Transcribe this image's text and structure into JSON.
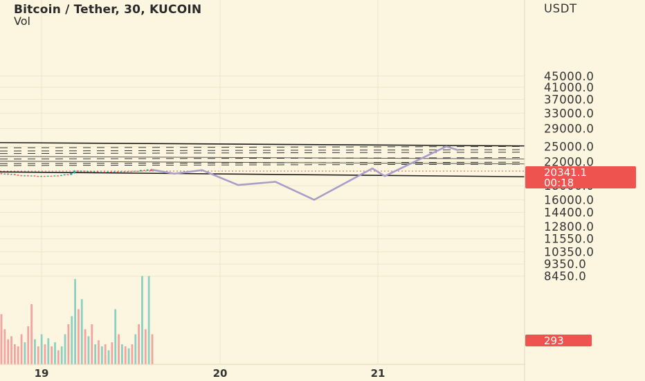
{
  "header": {
    "title": "Bitcoin / Tether, 30, KUCOIN",
    "indicator": "Vol"
  },
  "price_axis": {
    "currency": "USDT",
    "ticks": [
      "45000.0",
      "41000.0",
      "37000.0",
      "33000.0",
      "29000.0",
      "25000.0",
      "22000.0",
      "18000.0",
      "16000.0",
      "14400.0",
      "12800.0",
      "11550.0",
      "10350.0",
      "9350.0",
      "8450.0"
    ]
  },
  "time_axis": {
    "ticks": [
      "19",
      "20",
      "21"
    ]
  },
  "last_price": {
    "value": "20341.1",
    "countdown": "00:18",
    "color": "#ef5350"
  },
  "volume_label": {
    "value": "293",
    "color": "#ef5350"
  },
  "colors": {
    "background": "#fcf6e0",
    "up": "#26a69a",
    "down": "#ef5350",
    "projection": "#a99dc9",
    "channel": "#1a1a1a"
  },
  "chart_data": {
    "type": "candlestick",
    "title": "Bitcoin / Tether, 30, KUCOIN",
    "scale": "log",
    "ylim": [
      8000,
      48000
    ],
    "x_ticks": [
      "19",
      "20",
      "21"
    ],
    "candles_summary": {
      "low_approx": 18900,
      "high_approx": 20600,
      "last": 20341.1
    },
    "projection_path": [
      19900,
      20500,
      18100,
      18600,
      16000,
      20800,
      19500,
      25000,
      24200
    ],
    "channel_upper": [
      25800,
      25100
    ],
    "channel_lower": [
      20200,
      19400
    ],
    "inner_lines": [
      [
        23000,
        22500
      ],
      [
        22100,
        21600
      ]
    ],
    "dashed_levels": [
      24700,
      24050,
      23550,
      22500,
      21650,
      21300
    ],
    "volume": {
      "last": 293,
      "bars": [
        {
          "v": 50,
          "up": false
        },
        {
          "v": 35,
          "up": false
        },
        {
          "v": 25,
          "up": false
        },
        {
          "v": 28,
          "up": false
        },
        {
          "v": 20,
          "up": false
        },
        {
          "v": 18,
          "up": false
        },
        {
          "v": 30,
          "up": false
        },
        {
          "v": 22,
          "up": true
        },
        {
          "v": 38,
          "up": false
        },
        {
          "v": 60,
          "up": false
        },
        {
          "v": 25,
          "up": true
        },
        {
          "v": 18,
          "up": false
        },
        {
          "v": 30,
          "up": true
        },
        {
          "v": 20,
          "up": false
        },
        {
          "v": 26,
          "up": true
        },
        {
          "v": 18,
          "up": false
        },
        {
          "v": 22,
          "up": true
        },
        {
          "v": 14,
          "up": false
        },
        {
          "v": 18,
          "up": true
        },
        {
          "v": 30,
          "up": true
        },
        {
          "v": 40,
          "up": false
        },
        {
          "v": 48,
          "up": true
        },
        {
          "v": 85,
          "up": true
        },
        {
          "v": 55,
          "up": false
        },
        {
          "v": 65,
          "up": true
        },
        {
          "v": 35,
          "up": false
        },
        {
          "v": 28,
          "up": true
        },
        {
          "v": 40,
          "up": false
        },
        {
          "v": 20,
          "up": true
        },
        {
          "v": 24,
          "up": false
        },
        {
          "v": 18,
          "up": true
        },
        {
          "v": 20,
          "up": false
        },
        {
          "v": 14,
          "up": true
        },
        {
          "v": 22,
          "up": false
        },
        {
          "v": 55,
          "up": true
        },
        {
          "v": 30,
          "up": false
        },
        {
          "v": 20,
          "up": true
        },
        {
          "v": 18,
          "up": false
        },
        {
          "v": 16,
          "up": true
        },
        {
          "v": 20,
          "up": false
        },
        {
          "v": 30,
          "up": true
        },
        {
          "v": 40,
          "up": false
        },
        {
          "v": 88,
          "up": true
        },
        {
          "v": 35,
          "up": false
        },
        {
          "v": 88,
          "up": true
        },
        {
          "v": 30,
          "up": false
        }
      ]
    },
    "candles": [
      {
        "o": 19950,
        "c": 19850,
        "h": 20050,
        "l": 19780
      },
      {
        "o": 19850,
        "c": 19900,
        "h": 19980,
        "l": 19760
      },
      {
        "o": 19900,
        "c": 19780,
        "h": 19960,
        "l": 19700
      },
      {
        "o": 19780,
        "c": 19820,
        "h": 19900,
        "l": 19720
      },
      {
        "o": 19820,
        "c": 19700,
        "h": 19880,
        "l": 19640
      },
      {
        "o": 19700,
        "c": 19620,
        "h": 19760,
        "l": 19560
      },
      {
        "o": 19620,
        "c": 19540,
        "h": 19680,
        "l": 19480
      },
      {
        "o": 19540,
        "c": 19600,
        "h": 19660,
        "l": 19480
      },
      {
        "o": 19600,
        "c": 19520,
        "h": 19660,
        "l": 19460
      },
      {
        "o": 19520,
        "c": 19580,
        "h": 19640,
        "l": 19460
      },
      {
        "o": 19580,
        "c": 19500,
        "h": 19640,
        "l": 19440
      },
      {
        "o": 19500,
        "c": 19420,
        "h": 19560,
        "l": 19360
      },
      {
        "o": 19420,
        "c": 19500,
        "h": 19560,
        "l": 19360
      },
      {
        "o": 19500,
        "c": 19460,
        "h": 19560,
        "l": 19400
      },
      {
        "o": 19460,
        "c": 19540,
        "h": 19600,
        "l": 19400
      },
      {
        "o": 19540,
        "c": 19500,
        "h": 19600,
        "l": 19440
      },
      {
        "o": 19500,
        "c": 19580,
        "h": 19640,
        "l": 19460
      },
      {
        "o": 19580,
        "c": 19560,
        "h": 19640,
        "l": 19500
      },
      {
        "o": 19560,
        "c": 19660,
        "h": 19720,
        "l": 19500
      },
      {
        "o": 19660,
        "c": 19780,
        "h": 19840,
        "l": 19600
      },
      {
        "o": 19780,
        "c": 19720,
        "h": 19860,
        "l": 19660
      },
      {
        "o": 19720,
        "c": 19980,
        "h": 20050,
        "l": 19660
      },
      {
        "o": 19980,
        "c": 20400,
        "h": 20500,
        "l": 19900
      },
      {
        "o": 20400,
        "c": 20250,
        "h": 20480,
        "l": 20150
      },
      {
        "o": 20250,
        "c": 20380,
        "h": 20450,
        "l": 20180
      },
      {
        "o": 20380,
        "c": 20250,
        "h": 20440,
        "l": 20180
      },
      {
        "o": 20250,
        "c": 20320,
        "h": 20400,
        "l": 20180
      },
      {
        "o": 20320,
        "c": 20200,
        "h": 20380,
        "l": 20140
      },
      {
        "o": 20200,
        "c": 20260,
        "h": 20320,
        "l": 20140
      },
      {
        "o": 20260,
        "c": 20150,
        "h": 20320,
        "l": 20100
      },
      {
        "o": 20150,
        "c": 20200,
        "h": 20260,
        "l": 20100
      },
      {
        "o": 20200,
        "c": 20160,
        "h": 20260,
        "l": 20100
      },
      {
        "o": 20160,
        "c": 20220,
        "h": 20280,
        "l": 20100
      },
      {
        "o": 20220,
        "c": 20180,
        "h": 20280,
        "l": 20120
      },
      {
        "o": 20180,
        "c": 20260,
        "h": 20320,
        "l": 20120
      },
      {
        "o": 20260,
        "c": 20220,
        "h": 20320,
        "l": 20160
      },
      {
        "o": 20220,
        "c": 20280,
        "h": 20340,
        "l": 20160
      },
      {
        "o": 20280,
        "c": 20240,
        "h": 20340,
        "l": 20180
      },
      {
        "o": 20240,
        "c": 20300,
        "h": 20360,
        "l": 20180
      },
      {
        "o": 20300,
        "c": 20260,
        "h": 20360,
        "l": 20200
      },
      {
        "o": 20260,
        "c": 20350,
        "h": 20420,
        "l": 20200
      },
      {
        "o": 20350,
        "c": 20300,
        "h": 20420,
        "l": 20240
      },
      {
        "o": 20300,
        "c": 20500,
        "h": 20560,
        "l": 20240
      },
      {
        "o": 20500,
        "c": 20400,
        "h": 20560,
        "l": 20330
      },
      {
        "o": 20400,
        "c": 20600,
        "h": 20650,
        "l": 20340
      },
      {
        "o": 20600,
        "c": 20341,
        "h": 20640,
        "l": 20300
      }
    ]
  }
}
